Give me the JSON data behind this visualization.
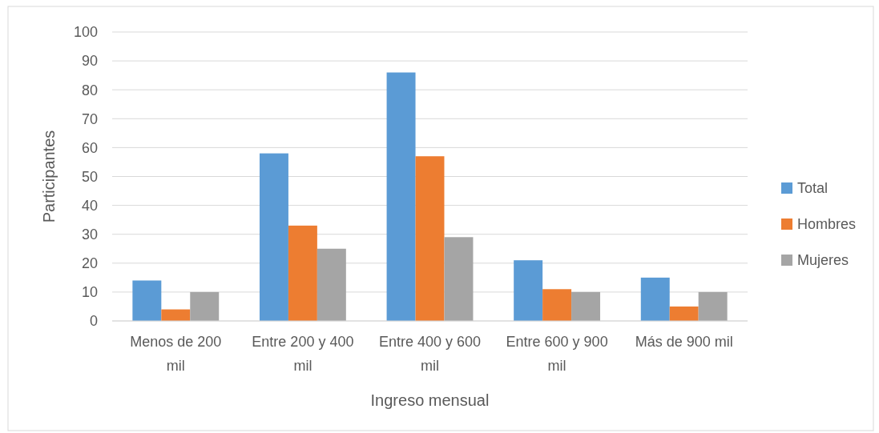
{
  "chart_data": {
    "type": "bar",
    "xlabel": "Ingreso mensual",
    "ylabel": "Participantes",
    "categories": [
      "Menos de 200 mil",
      "Entre 200 y 400 mil",
      "Entre 400 y 600 mil",
      "Entre 600 y 900 mil",
      "Más de 900 mil"
    ],
    "series": [
      {
        "name": "Total",
        "color": "#5b9bd5",
        "values": [
          14,
          58,
          86,
          21,
          15
        ]
      },
      {
        "name": "Hombres",
        "color": "#ed7d31",
        "values": [
          4,
          33,
          57,
          11,
          5
        ]
      },
      {
        "name": "Mujeres",
        "color": "#a5a5a5",
        "values": [
          10,
          25,
          29,
          10,
          10
        ]
      }
    ],
    "ylim": [
      0,
      100
    ],
    "yticks": [
      0,
      10,
      20,
      30,
      40,
      50,
      60,
      70,
      80,
      90,
      100
    ],
    "grid": "y",
    "legend": "right"
  }
}
